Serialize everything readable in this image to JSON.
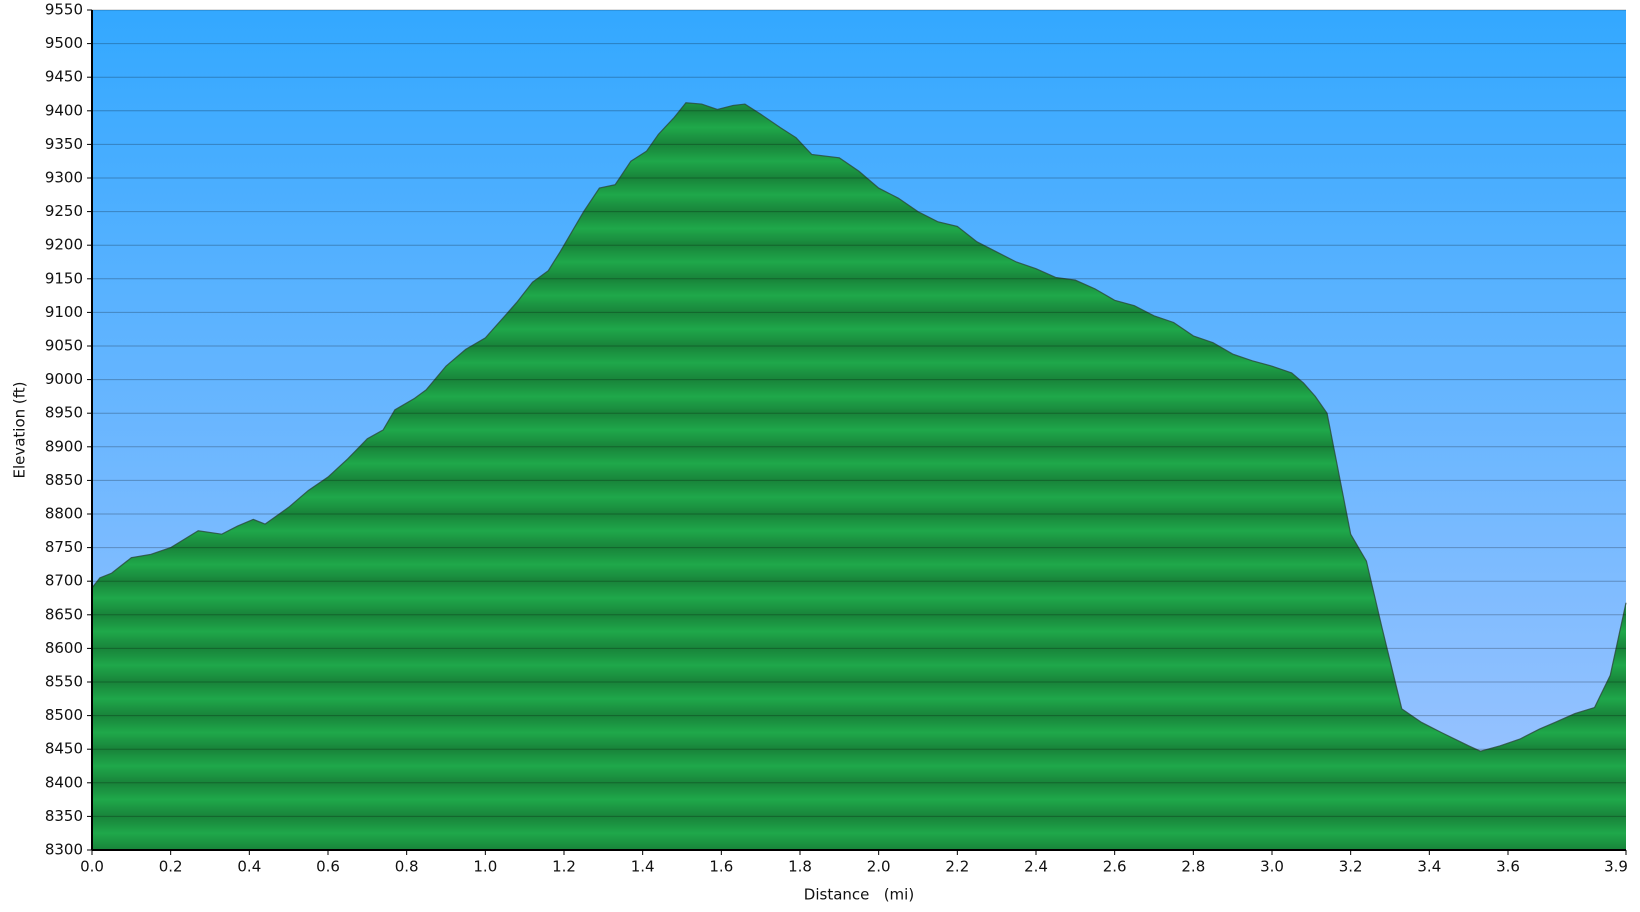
{
  "chart_data": {
    "type": "area",
    "xlabel": "Distance   (mi)",
    "ylabel": "Elevation (ft)",
    "color": "#1fa84a",
    "line_color": "#2a4a3a",
    "background": [
      "#33a8ff",
      "#a2c5ff"
    ],
    "grid": true,
    "xlim": [
      0,
      3.9
    ],
    "ylim": [
      8300,
      9550
    ],
    "xticks": [
      {
        "value": 0,
        "label": "0.0"
      },
      0.2,
      0.4,
      0.6,
      0.8,
      {
        "value": 1,
        "label": "1.0"
      },
      1.2,
      1.4,
      1.6,
      1.8,
      {
        "value": 2,
        "label": "2.0"
      },
      2.2,
      2.4,
      2.6,
      2.8,
      {
        "value": 3,
        "label": "3.0"
      },
      3.2,
      3.4,
      3.6,
      3.9
    ],
    "yticks": [
      8300,
      8350,
      8400,
      8450,
      8500,
      8550,
      8600,
      8650,
      8700,
      8750,
      8800,
      8850,
      8900,
      8950,
      9000,
      9050,
      9100,
      9150,
      9200,
      9250,
      9300,
      9350,
      9400,
      9450,
      9500,
      9550
    ],
    "x": [
      0,
      0.02,
      0.05,
      0.1,
      0.15,
      0.2,
      0.27,
      0.33,
      0.37,
      0.41,
      0.44,
      0.5,
      0.55,
      0.6,
      0.65,
      0.7,
      0.74,
      0.77,
      0.82,
      0.85,
      0.9,
      0.95,
      1.0,
      1.05,
      1.08,
      1.12,
      1.16,
      1.19,
      1.22,
      1.25,
      1.29,
      1.33,
      1.37,
      1.41,
      1.44,
      1.48,
      1.51,
      1.55,
      1.59,
      1.63,
      1.66,
      1.7,
      1.75,
      1.79,
      1.83,
      1.9,
      1.95,
      2.0,
      2.05,
      2.1,
      2.15,
      2.2,
      2.25,
      2.3,
      2.35,
      2.4,
      2.45,
      2.5,
      2.55,
      2.6,
      2.65,
      2.7,
      2.75,
      2.8,
      2.85,
      2.9,
      2.95,
      3.0,
      3.05,
      3.08,
      3.11,
      3.14,
      3.17,
      3.2,
      3.24,
      3.28,
      3.33,
      3.38,
      3.43,
      3.5,
      3.53,
      3.58,
      3.63,
      3.68,
      3.72,
      3.77,
      3.82,
      3.86,
      3.9
    ],
    "values": [
      8690,
      8705,
      8712,
      8735,
      8740,
      8750,
      8775,
      8770,
      8782,
      8792,
      8785,
      8810,
      8835,
      8855,
      8882,
      8912,
      8925,
      8955,
      8972,
      8985,
      9020,
      9045,
      9062,
      9095,
      9115,
      9145,
      9162,
      9190,
      9220,
      9250,
      9285,
      9290,
      9325,
      9340,
      9365,
      9390,
      9412,
      9410,
      9402,
      9408,
      9410,
      9395,
      9375,
      9360,
      9335,
      9330,
      9310,
      9285,
      9270,
      9250,
      9235,
      9228,
      9205,
      9190,
      9175,
      9165,
      9152,
      9148,
      9135,
      9118,
      9110,
      9095,
      9085,
      9065,
      9055,
      9038,
      9028,
      9020,
      9010,
      8995,
      8975,
      8950,
      8860,
      8770,
      8730,
      8630,
      8510,
      8490,
      8475,
      8455,
      8447,
      8455,
      8465,
      8480,
      8490,
      8503,
      8512,
      8560,
      8668
    ]
  }
}
